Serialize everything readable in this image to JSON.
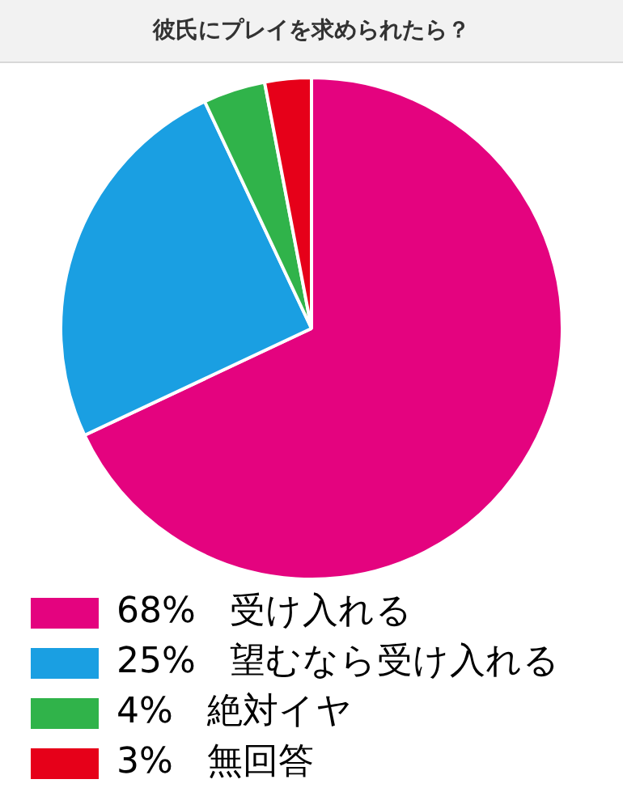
{
  "chart_data": {
    "type": "pie",
    "title": "彼氏にプレイを求められたら？",
    "categories": [
      "受け入れる",
      "望むなら受け入れる",
      "絶対イヤ",
      "無回答"
    ],
    "values": [
      68,
      25,
      4,
      3
    ],
    "colors": [
      "#e4037f",
      "#1a9fe2",
      "#30b34a",
      "#e60019"
    ],
    "value_labels": [
      "68%",
      "25%",
      "4%",
      "3%"
    ],
    "legend": "bottom"
  }
}
